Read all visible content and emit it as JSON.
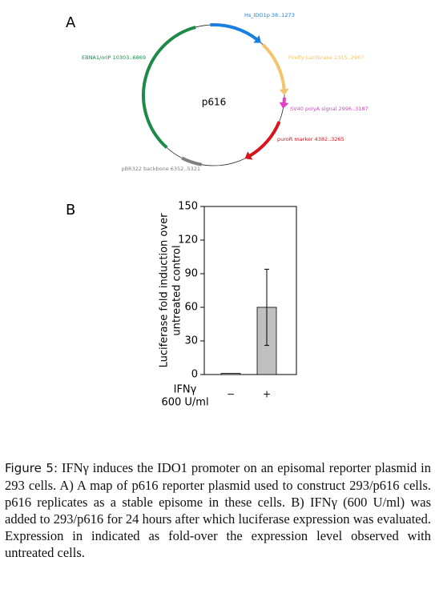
{
  "panel_a": {
    "label": "A",
    "plasmid_name": "p616",
    "features": [
      {
        "label": "Hs_IDO1p 38..1273",
        "color": "#1a7fe0"
      },
      {
        "label": "Firefly Luciferase 1315..2967",
        "color": "#f2c46b"
      },
      {
        "label": "SV40 polyA signal 2996..3187",
        "color": "#e040c8"
      },
      {
        "label": "puroR marker 4382..3265",
        "color": "#d8141c"
      },
      {
        "label": "pBR322 backbone 6352..5321",
        "color": "#808080"
      },
      {
        "label": "EBNA1/oriP 10303..6869",
        "color": "#1e8a4a"
      }
    ]
  },
  "chart_data": {
    "type": "bar",
    "panel_label": "B",
    "y_label": [
      "Luciferase fold induction over",
      "untreated control"
    ],
    "x_label": [
      "IFNγ",
      "600 U/ml"
    ],
    "categories": [
      "−",
      "+"
    ],
    "values": [
      1,
      60
    ],
    "errors": [
      null,
      34
    ],
    "color": "#c0c0c0",
    "ylim": [
      0,
      150
    ],
    "yticks": [
      0,
      30,
      60,
      90,
      120,
      150
    ]
  },
  "caption": {
    "label": "Figure 5:",
    "text": "IFNγ induces the IDO1 promoter on an episomal reporter plasmid in 293 cells. A) A map of p616 reporter plasmid used to construct 293/p616 cells. p616 replicates as a stable episome in these cells. B) IFNγ (600 U/ml) was added to 293/p616 for 24 hours after which luciferase expression was evaluated. Expression in indicated as fold-over the expression level observed with untreated cells."
  }
}
